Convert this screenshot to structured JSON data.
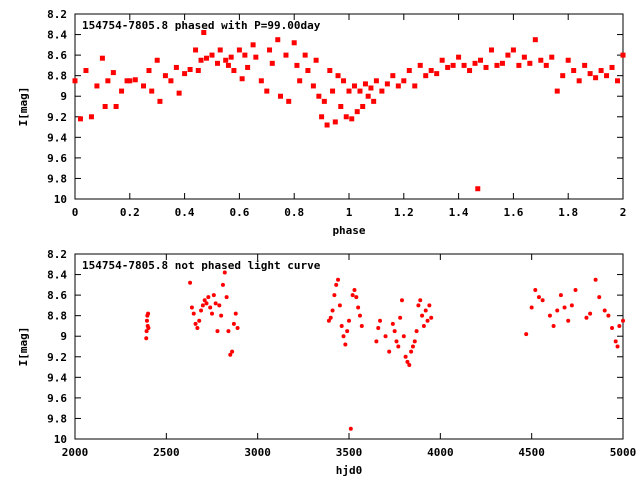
{
  "chart_data": [
    {
      "type": "scatter",
      "title": "154754-7805.8 phased with P=99.00day",
      "xlabel": "phase",
      "ylabel": "I[mag]",
      "xlim": [
        0,
        2
      ],
      "ylim": [
        8.2,
        10
      ],
      "y_inverted": true,
      "grid": false,
      "marker_color": "#ff0000",
      "xticks": [
        "0",
        "0.2",
        "0.4",
        "0.6",
        "0.8",
        "1",
        "1.2",
        "1.4",
        "1.6",
        "1.8",
        "2"
      ],
      "yticks": [
        "8.2",
        "8.4",
        "8.6",
        "8.8",
        "9",
        "9.2",
        "9.4",
        "9.6",
        "9.8",
        "10"
      ],
      "x": [
        0.0,
        0.02,
        0.04,
        0.06,
        0.08,
        0.1,
        0.11,
        0.12,
        0.14,
        0.15,
        0.17,
        0.19,
        0.2,
        0.22,
        0.25,
        0.27,
        0.28,
        0.3,
        0.31,
        0.33,
        0.35,
        0.37,
        0.38,
        0.4,
        0.42,
        0.44,
        0.45,
        0.46,
        0.47,
        0.48,
        0.5,
        0.52,
        0.53,
        0.55,
        0.56,
        0.57,
        0.58,
        0.6,
        0.61,
        0.62,
        0.63,
        0.65,
        0.66,
        0.68,
        0.7,
        0.71,
        0.72,
        0.74,
        0.75,
        0.77,
        0.78,
        0.8,
        0.81,
        0.82,
        0.84,
        0.85,
        0.87,
        0.88,
        0.89,
        0.9,
        0.91,
        0.92,
        0.93,
        0.94,
        0.95,
        0.96,
        0.97,
        0.98,
        0.99,
        1.0,
        1.01,
        1.02,
        1.03,
        1.04,
        1.05,
        1.06,
        1.07,
        1.08,
        1.09,
        1.1,
        1.12,
        1.14,
        1.16,
        1.18,
        1.2,
        1.22,
        1.24,
        1.26,
        1.28,
        1.3,
        1.32,
        1.34,
        1.36,
        1.38,
        1.4,
        1.42,
        1.44,
        1.46,
        1.47,
        1.48,
        1.5,
        1.52,
        1.54,
        1.56,
        1.58,
        1.6,
        1.62,
        1.64,
        1.66,
        1.68,
        1.7,
        1.72,
        1.74,
        1.76,
        1.78,
        1.8,
        1.82,
        1.84,
        1.86,
        1.88,
        1.9,
        1.92,
        1.94,
        1.96,
        1.98,
        2.0
      ],
      "y": [
        8.85,
        9.22,
        8.75,
        9.2,
        8.9,
        8.63,
        9.1,
        8.85,
        8.77,
        9.1,
        8.95,
        8.85,
        8.85,
        8.84,
        8.9,
        8.75,
        8.95,
        8.65,
        9.05,
        8.8,
        8.85,
        8.72,
        8.97,
        8.78,
        8.74,
        8.55,
        8.75,
        8.65,
        8.38,
        8.63,
        8.6,
        8.68,
        8.55,
        8.65,
        8.7,
        8.62,
        8.75,
        8.55,
        8.83,
        8.6,
        8.72,
        8.5,
        8.62,
        8.85,
        8.95,
        8.55,
        8.68,
        8.45,
        9.0,
        8.6,
        9.05,
        8.48,
        8.7,
        8.85,
        8.6,
        8.75,
        8.9,
        8.65,
        9.0,
        9.2,
        9.05,
        9.28,
        8.75,
        8.95,
        9.25,
        8.8,
        9.1,
        8.85,
        9.2,
        8.95,
        9.22,
        8.9,
        9.15,
        8.95,
        9.1,
        8.88,
        9.0,
        8.92,
        9.05,
        8.85,
        8.95,
        8.88,
        8.8,
        8.9,
        8.85,
        8.75,
        8.9,
        8.7,
        8.8,
        8.75,
        8.78,
        8.65,
        8.72,
        8.7,
        8.62,
        8.7,
        8.75,
        8.68,
        9.9,
        8.65,
        8.72,
        8.55,
        8.7,
        8.68,
        8.6,
        8.55,
        8.7,
        8.62,
        8.68,
        8.45,
        8.65,
        8.7,
        8.62,
        8.95,
        8.8,
        8.65,
        8.75,
        8.85,
        8.7,
        8.78,
        8.82,
        8.75,
        8.8,
        8.72,
        8.85,
        8.6
      ]
    },
    {
      "type": "scatter",
      "title": "154754-7805.8 not phased light curve",
      "xlabel": "hjd0",
      "ylabel": "I[mag]",
      "xlim": [
        2000,
        5000
      ],
      "ylim": [
        8.2,
        10
      ],
      "y_inverted": true,
      "grid": false,
      "marker_color": "#ff0000",
      "xticks": [
        "2000",
        "2500",
        "3000",
        "3500",
        "4000",
        "4500",
        "5000"
      ],
      "yticks": [
        "8.2",
        "8.4",
        "8.6",
        "8.8",
        "9",
        "9.2",
        "9.4",
        "9.6",
        "9.8",
        "10"
      ],
      "x": [
        2390,
        2392,
        2394,
        2396,
        2398,
        2400,
        2402,
        2630,
        2640,
        2650,
        2660,
        2670,
        2680,
        2690,
        2700,
        2710,
        2720,
        2730,
        2740,
        2750,
        2760,
        2770,
        2780,
        2790,
        2800,
        2810,
        2820,
        2830,
        2840,
        2850,
        2860,
        2870,
        2880,
        2890,
        3390,
        3400,
        3410,
        3420,
        3430,
        3440,
        3450,
        3460,
        3470,
        3480,
        3490,
        3500,
        3510,
        3520,
        3530,
        3540,
        3550,
        3560,
        3570,
        3650,
        3660,
        3670,
        3700,
        3720,
        3740,
        3750,
        3760,
        3770,
        3780,
        3790,
        3800,
        3810,
        3820,
        3830,
        3840,
        3850,
        3860,
        3870,
        3880,
        3890,
        3900,
        3910,
        3920,
        3930,
        3940,
        3950,
        4470,
        4500,
        4520,
        4540,
        4560,
        4600,
        4620,
        4640,
        4660,
        4680,
        4700,
        4720,
        4740,
        4800,
        4820,
        4850,
        4870,
        4900,
        4920,
        4940,
        4960,
        4970,
        4980,
        5000
      ],
      "y": [
        9.02,
        8.95,
        8.85,
        8.8,
        8.9,
        8.78,
        8.92,
        8.48,
        8.72,
        8.78,
        8.88,
        8.92,
        8.85,
        8.75,
        8.7,
        8.65,
        8.68,
        8.62,
        8.72,
        8.78,
        8.6,
        8.68,
        8.95,
        8.7,
        8.8,
        8.5,
        8.38,
        8.62,
        8.95,
        9.18,
        9.15,
        8.88,
        8.78,
        8.92,
        8.85,
        8.82,
        8.75,
        8.6,
        8.5,
        8.45,
        8.7,
        8.9,
        9.0,
        9.08,
        8.95,
        8.85,
        9.9,
        8.6,
        8.55,
        8.62,
        8.72,
        8.8,
        8.9,
        9.05,
        8.92,
        8.85,
        9.0,
        9.15,
        8.88,
        8.95,
        9.05,
        9.1,
        8.82,
        8.65,
        9.0,
        9.2,
        9.25,
        9.28,
        9.15,
        9.1,
        9.05,
        8.95,
        8.7,
        8.65,
        8.8,
        8.9,
        8.75,
        8.85,
        8.7,
        8.82,
        8.98,
        8.72,
        8.55,
        8.62,
        8.65,
        8.8,
        8.9,
        8.75,
        8.6,
        8.72,
        8.85,
        8.7,
        8.55,
        8.82,
        8.78,
        8.45,
        8.62,
        8.75,
        8.8,
        8.92,
        9.05,
        9.1,
        8.9,
        8.85
      ]
    }
  ]
}
